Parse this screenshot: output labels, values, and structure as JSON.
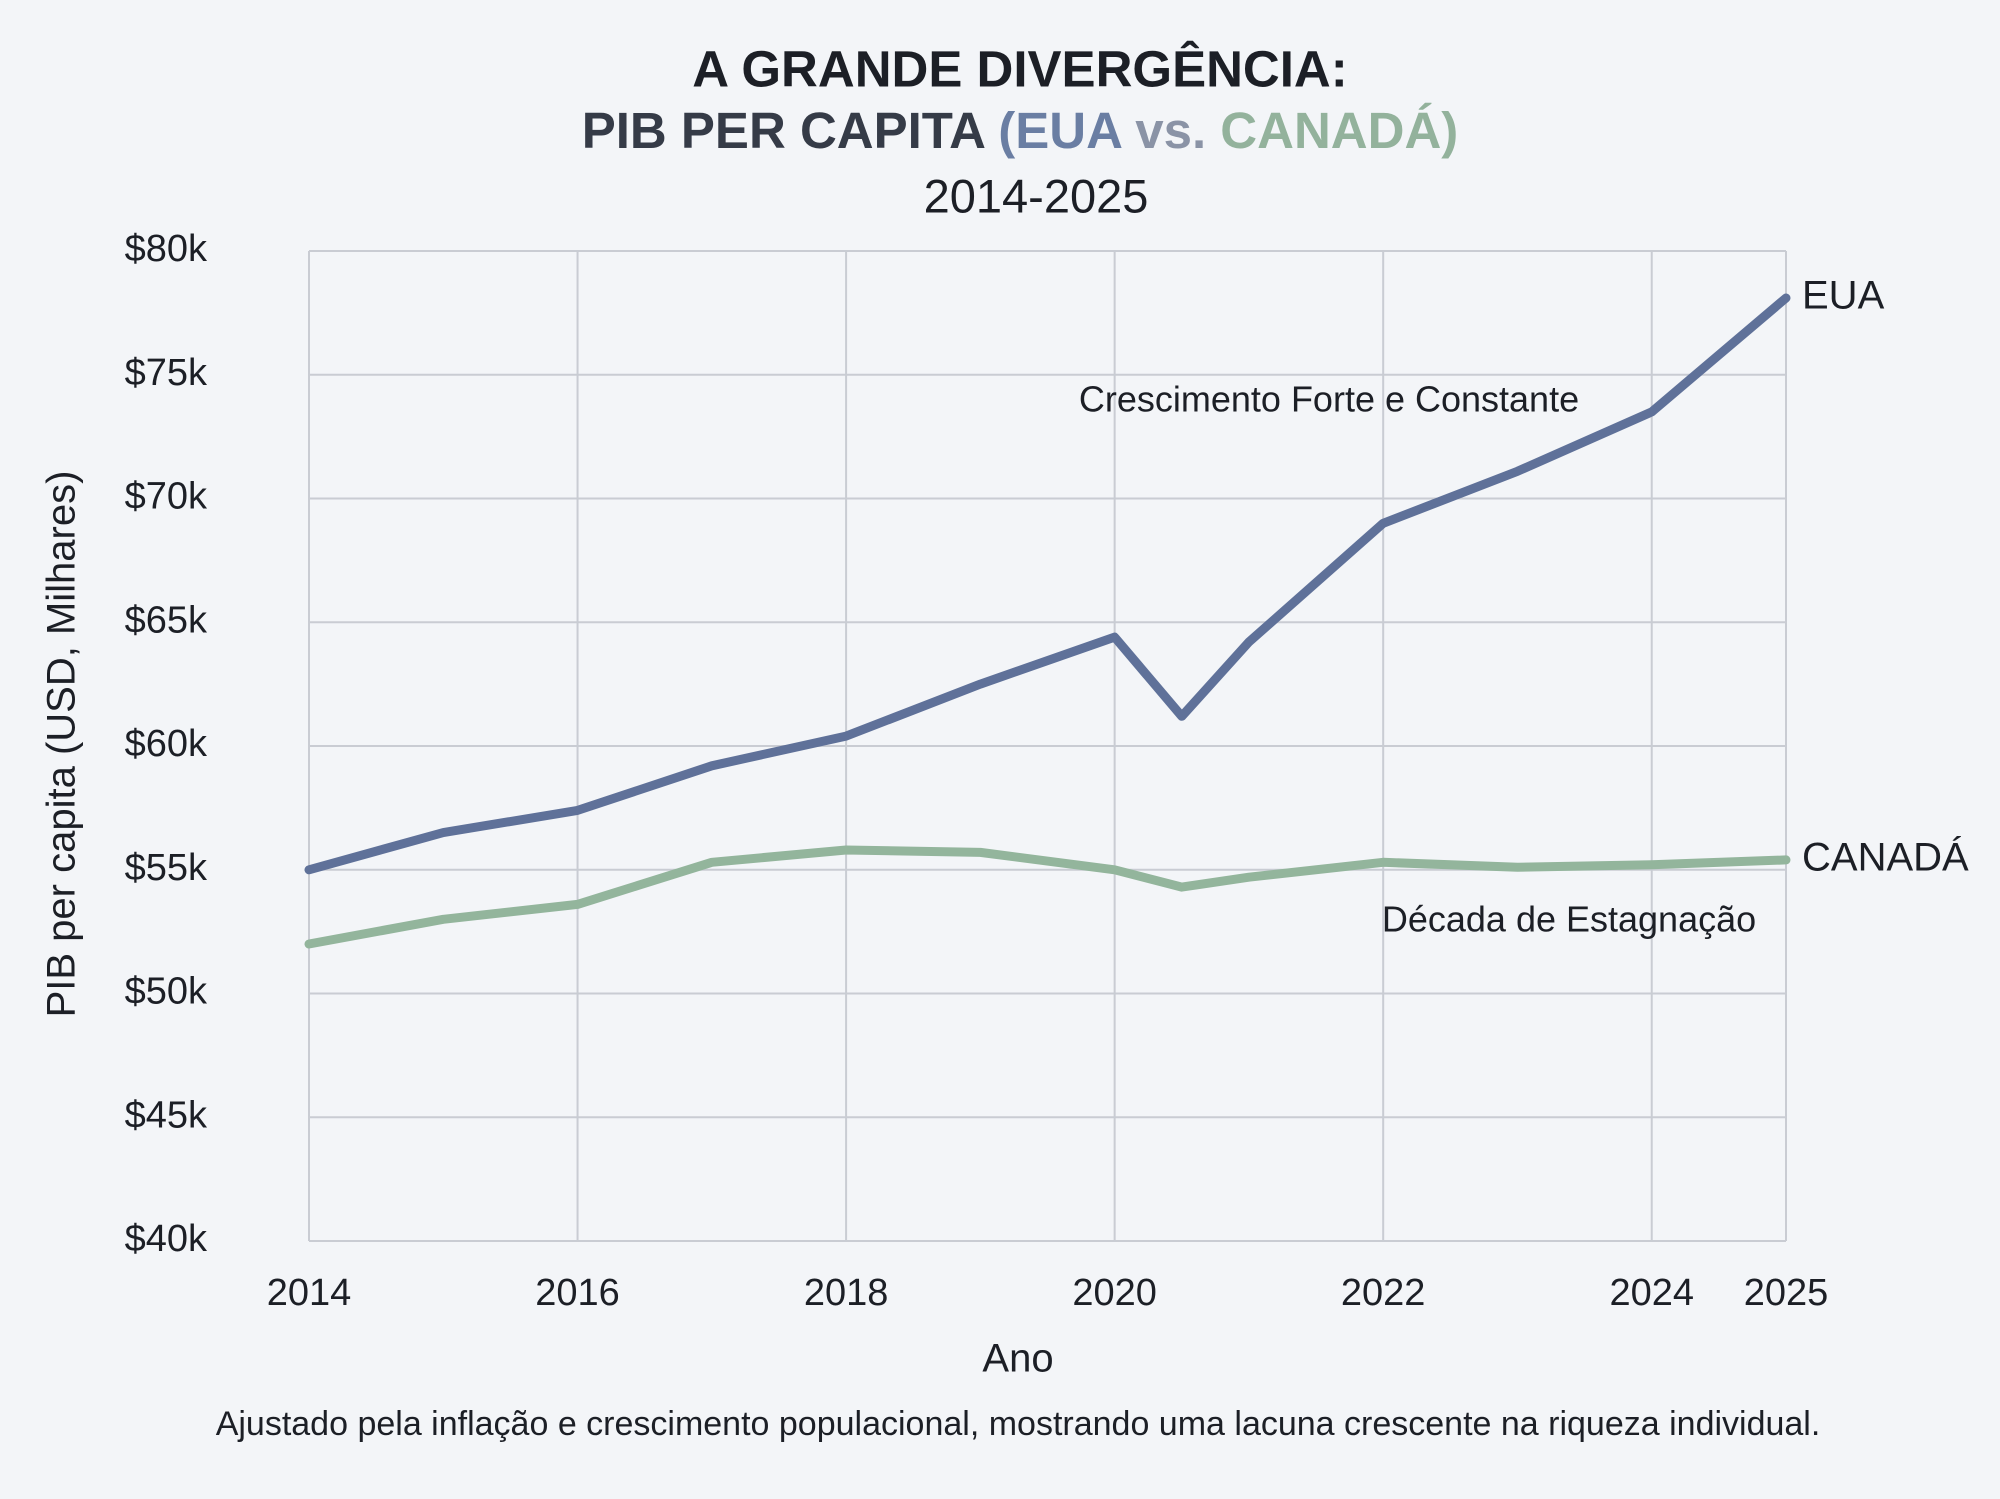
{
  "chart_data": {
    "type": "line",
    "title": "A GRANDE DIVERGÊNCIA:",
    "subtitle_parts": [
      {
        "text": "PIB PER CAPITA ",
        "color": "#353b47"
      },
      {
        "text": "(EUA",
        "color": "#6a7ea3"
      },
      {
        "text": " vs. ",
        "color": "#8a93a6"
      },
      {
        "text": "CANADÁ)",
        "color": "#93b29c"
      }
    ],
    "period": "2014-2025",
    "x_label": "Ano",
    "y_label": "PIB per capita (USD, Milhares)",
    "footnote": "Ajustado pela inflação e crescimento populacional, mostrando uma lacuna crescente na riqueza individual.",
    "x": [
      2014,
      2015,
      2016,
      2017,
      2018,
      2019,
      2020,
      2020.5,
      2021,
      2022,
      2023,
      2024,
      2025
    ],
    "series": [
      {
        "name": "EUA",
        "color": "#5f7199",
        "values": [
          55.0,
          56.5,
          57.4,
          59.2,
          60.4,
          62.5,
          64.4,
          61.2,
          64.2,
          69.0,
          71.1,
          73.5,
          78.1
        ]
      },
      {
        "name": "CANADÁ",
        "color": "#93b59c",
        "values": [
          52.0,
          53.0,
          53.6,
          55.3,
          55.8,
          55.7,
          55.0,
          54.3,
          54.7,
          55.3,
          55.1,
          55.2,
          55.4
        ]
      }
    ],
    "annotations": [
      "Crescimento Forte e Constante",
      "Década de Estagnação"
    ],
    "xlim": [
      2014,
      2025
    ],
    "xticks": [
      2014,
      2016,
      2018,
      2020,
      2022,
      2024,
      2025
    ],
    "ylim": [
      40,
      80
    ],
    "yticks": [
      {
        "value": 40,
        "label": "$40k"
      },
      {
        "value": 45,
        "label": "$45k"
      },
      {
        "value": 50,
        "label": "$50k"
      },
      {
        "value": 55,
        "label": "$55k"
      },
      {
        "value": 60,
        "label": "$60k"
      },
      {
        "value": 65,
        "label": "$65k"
      },
      {
        "value": 70,
        "label": "$70k"
      },
      {
        "value": 75,
        "label": "$75k"
      },
      {
        "value": 80,
        "label": "$80k"
      }
    ],
    "grid": true
  }
}
